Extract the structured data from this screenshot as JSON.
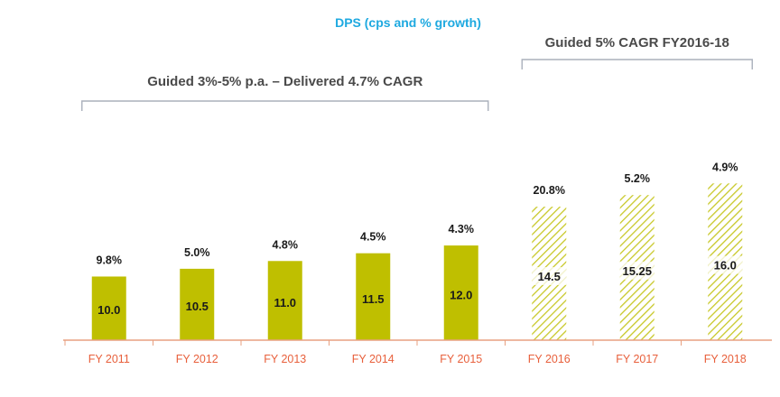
{
  "chart_data": {
    "type": "bar",
    "title": "DPS (cps and % growth)",
    "categories": [
      "FY 2011",
      "FY 2012",
      "FY 2013",
      "FY 2014",
      "FY 2015",
      "FY 2016",
      "FY 2017",
      "FY 2018"
    ],
    "values": [
      10.0,
      10.5,
      11.0,
      11.5,
      12.0,
      14.5,
      15.25,
      16.0
    ],
    "value_labels": [
      "10.0",
      "10.5",
      "11.0",
      "11.5",
      "12.0",
      "14.5",
      "15.25",
      "16.0"
    ],
    "growth_labels": [
      "9.8%",
      "5.0%",
      "4.8%",
      "4.5%",
      "4.3%",
      "20.8%",
      "5.2%",
      "4.9%"
    ],
    "bar_style": [
      "solid",
      "solid",
      "solid",
      "solid",
      "solid",
      "hatched",
      "hatched",
      "hatched"
    ],
    "annotations": [
      {
        "text": "Guided 3%-5% p.a. – Delivered 4.7% CAGR",
        "categories": [
          "FY 2011",
          "FY 2015"
        ]
      },
      {
        "text": "Guided 5% CAGR FY2016-18",
        "categories": [
          "FY 2016",
          "FY 2018"
        ]
      }
    ],
    "xlabel": "",
    "ylabel": "",
    "grid": false,
    "legend": "none",
    "colors": {
      "bar": "#bfbf00",
      "hatch": "#c8c828",
      "title": "#1ea9e0",
      "tick_label": "#e8603c",
      "axis": "#e8a080",
      "bracket": "#aab0bc",
      "annotation": "#4a4a4a",
      "text": "#1a1a1a"
    }
  }
}
